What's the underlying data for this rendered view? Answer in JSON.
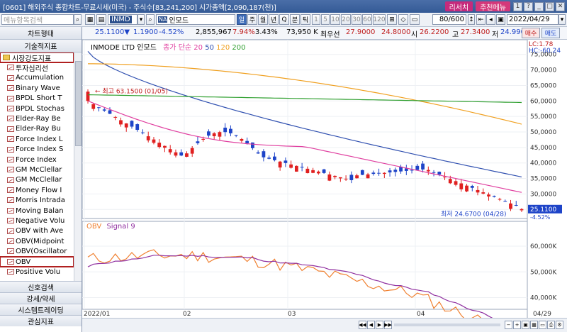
{
  "window": {
    "title": "[0601] 해외주식 종합차트-무료시세(미국) - 주식수[83,241,200] 시가총액[2,090,187(천)]",
    "research_btn": "리서치",
    "menu_btn": "추천메뉴",
    "win_buttons": [
      "1",
      "?",
      "_",
      "□",
      "✕"
    ]
  },
  "toolbar": {
    "search_placeholder": "메뉴항목검색",
    "ticker": "INMD",
    "ticker_tag": "NA",
    "name": "인모드",
    "periods": [
      "일",
      "주",
      "월",
      "년",
      "Q",
      "분",
      "틱"
    ],
    "minutes": [
      "1",
      "5",
      "10",
      "20",
      "30",
      "60",
      "120"
    ],
    "count": "80/600",
    "date": "2022/04/29"
  },
  "quote": {
    "price": "25.1100▼",
    "change": "1.1900",
    "change_pct": "-4.52%",
    "volume": "2,855,967",
    "vol_pct": "7.94%",
    "pct2": "3.43%",
    "amount": "73,950 K",
    "bid_label": "최우선",
    "bid": "27.9000",
    "ask": "24.8000",
    "low_label": "시",
    "low": "26.2200",
    "high_label": "고",
    "high": "27.3400",
    "close_label": "저",
    "close": "24.9900",
    "buy": "매수",
    "sell": "매도"
  },
  "sidebar": {
    "top1": "차트형태",
    "top2": "기술적지표",
    "folder": "시장강도지표",
    "items": [
      "투자심리선",
      "Accumulation",
      "Binary Wave",
      "BPDL Short T",
      "BPDL Stochas",
      "Elder-Ray Be",
      "Elder-Ray Bu",
      "Force Index L",
      "Force Index S",
      "Force Index",
      "GM McClellar",
      "GM McClellar",
      "Money Flow I",
      "Morris Intrada",
      "Moving Balan",
      "Negative Volu",
      "OBV with Ave",
      "OBV(Midpoint",
      "OBV(Oscillator",
      "OBV",
      "Positive Volu"
    ],
    "bottom": [
      "신호검색",
      "강세/약세",
      "시스템트레이딩",
      "관심지표"
    ]
  },
  "chart": {
    "legend_name": "INMODE LTD 인모드",
    "legend_ma_label": "종가 단순",
    "ma_periods": [
      "20",
      "50",
      "120",
      "200"
    ],
    "ma_colors": [
      "#e040a0",
      "#3050b0",
      "#f0a020",
      "#30a030"
    ],
    "lc_label": "LC:1.78",
    "hc_label": "HC:-60.24",
    "price_axis": [
      "75,0000",
      "70,0000",
      "65,0000",
      "60,0000",
      "55,0000",
      "50,0000",
      "45,0000",
      "40,0000",
      "35,0000",
      "30,0000",
      "25,0000"
    ],
    "price_tag": "25.1100",
    "price_tag_pct": "-4.52%",
    "max_label": "최고 63.1500 (01/05)",
    "min_label": "최저 24.6700 (04/28)",
    "obv_legend": "OBV",
    "signal_legend": "Signal 9",
    "obv_axis": [
      "60,000K",
      "50,000K",
      "40,000K"
    ],
    "x_labels": [
      "2022/01",
      "02",
      "03",
      "04",
      "04/29"
    ]
  },
  "chart_data": {
    "type": "candlestick",
    "x_start": "2022-01-03",
    "x_end": "2022-04-29",
    "ylim": [
      23,
      77
    ],
    "first_candle": {
      "open": 60,
      "close": 63,
      "high": 63.15,
      "low": 58
    },
    "last_candle": {
      "close": 25.11
    },
    "high_point": {
      "value": 63.15,
      "date": "01/05"
    },
    "low_point": {
      "value": 24.67,
      "date": "04/28"
    },
    "ma_20_range": [
      60,
      30.5
    ],
    "ma_50_range": [
      76,
      35.5
    ],
    "ma_120_range": [
      72,
      52.5
    ],
    "ma_200_range": [
      62,
      59.5
    ],
    "obv_range_k": [
      53000,
      37000
    ],
    "signal_range_k": [
      51000,
      41000
    ]
  }
}
